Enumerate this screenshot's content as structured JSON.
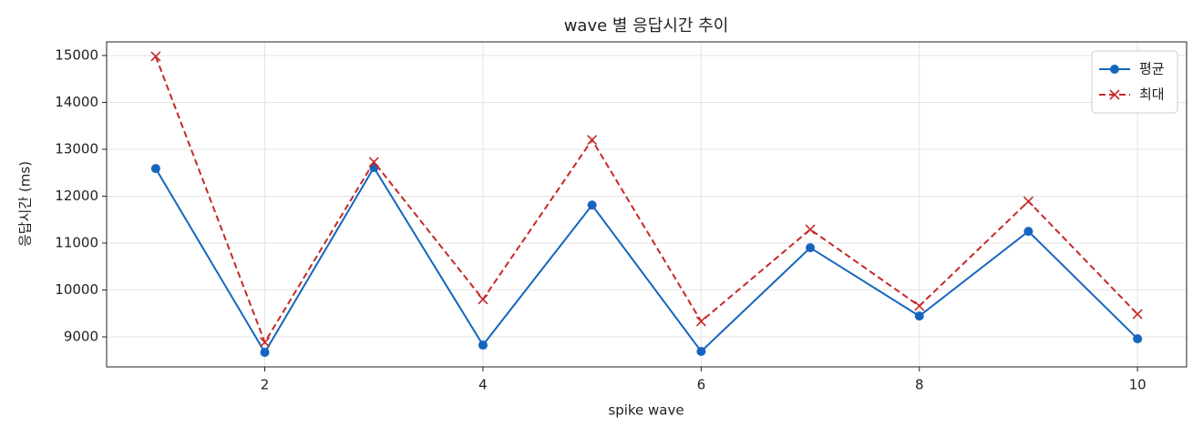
{
  "chart_data": {
    "type": "line",
    "title": "wave 별 응답시간 추이",
    "xlabel": "spike wave",
    "ylabel": "응답시간 (ms)",
    "x": [
      1,
      2,
      3,
      4,
      5,
      6,
      7,
      8,
      9,
      10
    ],
    "series": [
      {
        "name": "평균",
        "color": "#1565c0",
        "marker": "o",
        "linestyle": "solid",
        "values": [
          12590,
          8670,
          12610,
          8825,
          11810,
          8690,
          10900,
          9445,
          11250,
          8960
        ]
      },
      {
        "name": "최대",
        "color": "#c62828",
        "marker": "x",
        "linestyle": "dashed",
        "values": [
          14980,
          8885,
          12730,
          9800,
          13200,
          9330,
          11290,
          9660,
          11890,
          9485
        ]
      }
    ],
    "xlim": [
      0.55,
      10.45
    ],
    "xticks": [
      2,
      4,
      6,
      8,
      10
    ],
    "ylim": [
      8360,
      15290
    ],
    "yticks": [
      9000,
      10000,
      11000,
      12000,
      13000,
      14000,
      15000
    ],
    "grid": true,
    "legend": "upper right"
  }
}
